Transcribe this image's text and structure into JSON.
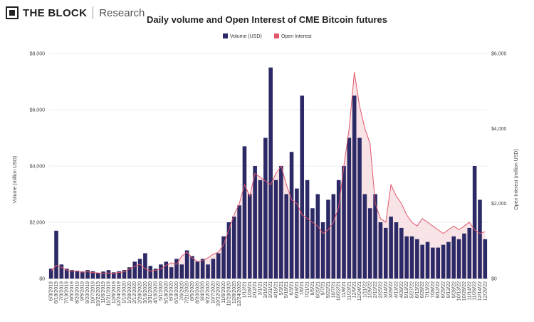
{
  "brand": {
    "name": "THE BLOCK",
    "sub": "Research"
  },
  "chart_data": {
    "type": "bar",
    "title": "Daily volume and Open Interest of CME Bitcoin futures",
    "xlabel": "",
    "ylabel": "Volume (million USD)",
    "y2label": "Open Interest (million USD)",
    "ylim": [
      0,
      8000
    ],
    "y2lim": [
      0,
      6000
    ],
    "yticks": [
      "$0",
      "$2,000",
      "$4,000",
      "$6,000",
      "$8,000"
    ],
    "y2ticks": [
      "$0",
      "$2,000",
      "$4,000",
      "$6,000"
    ],
    "legend_position": "top-center",
    "grid": true,
    "colors": {
      "volume": "#2b2a66",
      "open_interest": "#e0566b",
      "oi_fill": "#f7dfe3"
    },
    "x_tick_labels": [
      "6/3/2019",
      "6/18/2019",
      "7/3/2019",
      "7/19/2019",
      "8/5/2019",
      "8/20/2019",
      "9/5/2019",
      "9/20/2019",
      "10/7/2019",
      "10/22/2019",
      "11/6/2019",
      "11/21/2019",
      "12/6/2019",
      "12/24/2019",
      "1/10/2020",
      "1/28/2020",
      "2/12/2020",
      "2/28/2020",
      "3/16/2020",
      "3/31/2020",
      "4/16/2020",
      "5/1/2020",
      "5/18/2020",
      "6/3/2020",
      "6/18/2020",
      "7/6/2020",
      "7/21/2020",
      "8/5/2020",
      "8/20/2020",
      "9/4/2020",
      "9/22/2020",
      "10/7/2020",
      "10/22/2020",
      "11/6/2020",
      "11/23/2020",
      "12/8/2020",
      "12/24/2020",
      "1/12/21",
      "1/28/21",
      "2/12/21",
      "3/1/21",
      "3/16/21",
      "3/31/21",
      "4/16/21",
      "5/3/21",
      "5/18/21",
      "6/3/21",
      "6/18/21",
      "7/6/21",
      "7/21/21",
      "8/5/21",
      "8/20/21",
      "9/7/21",
      "9/22/21",
      "10/7/21",
      "10/22/21",
      "11/8/21",
      "11/23/21",
      "12/9/21",
      "12/24/21",
      "1/11/22",
      "1/26/22",
      "2/10/22",
      "2/25/22",
      "3/14/22",
      "3/29/22",
      "4/13/22",
      "4/28/22",
      "5/13/22",
      "5/27/22",
      "6/13/22",
      "6/28/22",
      "7/13/22",
      "7/28/22",
      "8/12/22",
      "8/29/22",
      "9/13/22",
      "9/28/22",
      "10/13/22",
      "10/28/22",
      "11/14/22",
      "11/29/22",
      "12/14/22",
      "12/29/22"
    ],
    "series": [
      {
        "name": "Volume (USD)",
        "kind": "bar",
        "axis": "left",
        "values": [
          350,
          1700,
          500,
          350,
          300,
          280,
          250,
          300,
          260,
          200,
          250,
          300,
          220,
          260,
          300,
          400,
          600,
          700,
          900,
          450,
          350,
          500,
          600,
          400,
          700,
          500,
          1000,
          800,
          600,
          700,
          500,
          700,
          900,
          1500,
          2000,
          2200,
          2600,
          4700,
          3000,
          4000,
          3500,
          5000,
          7500,
          3500,
          4000,
          3000,
          4500,
          3200,
          6500,
          3500,
          2500,
          3000,
          2000,
          2800,
          3000,
          3500,
          4000,
          5000,
          6500,
          5000,
          3000,
          2500,
          3000,
          2000,
          1800,
          2200,
          2000,
          1800,
          1500,
          1500,
          1400,
          1200,
          1300,
          1100,
          1100,
          1200,
          1300,
          1500,
          1400,
          1600,
          1800,
          4000,
          2800,
          1400
        ]
      },
      {
        "name": "Open Interest",
        "kind": "line",
        "axis": "right",
        "values": [
          200,
          350,
          300,
          220,
          200,
          180,
          170,
          180,
          160,
          150,
          140,
          150,
          140,
          160,
          180,
          260,
          320,
          380,
          260,
          200,
          220,
          260,
          350,
          420,
          380,
          600,
          700,
          550,
          450,
          480,
          550,
          650,
          700,
          900,
          1300,
          1700,
          2000,
          2500,
          2200,
          2800,
          2700,
          2600,
          2500,
          2800,
          3000,
          2500,
          2100,
          2000,
          1700,
          1600,
          1500,
          1400,
          1200,
          1300,
          1500,
          1900,
          3000,
          4000,
          5500,
          4600,
          4000,
          3600,
          2000,
          1600,
          1500,
          2500,
          2200,
          2000,
          1700,
          1500,
          1400,
          1600,
          1500,
          1400,
          1300,
          1200,
          1300,
          1400,
          1300,
          1400,
          1500,
          1300,
          1200,
          1250
        ]
      }
    ]
  }
}
